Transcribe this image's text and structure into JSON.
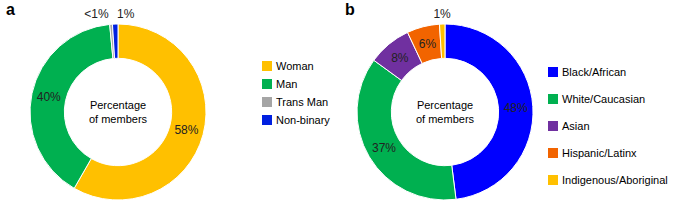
{
  "chart_data": [
    {
      "type": "donut",
      "title": "a",
      "annotations": [
        "Percentage of members"
      ],
      "categories": [
        "Woman",
        "Man",
        "Trans Man",
        "Non-binary"
      ],
      "values": [
        58,
        40,
        0.5,
        1
      ],
      "value_labels": [
        "58%",
        "40%",
        "<1%",
        "1%"
      ],
      "colors": [
        "#ffc000",
        "#00b050",
        "#a5a5a5",
        "#0020e0"
      ],
      "data_labels": true,
      "legend": "right"
    },
    {
      "type": "donut",
      "title": "b",
      "annotations": [
        "Percentage of members"
      ],
      "categories": [
        "Black/African",
        "White/Caucasian",
        "Asian",
        "Hispanic/Latinx",
        "Indigenous/Aboriginal"
      ],
      "values": [
        48,
        37,
        8,
        6,
        1
      ],
      "value_labels": [
        "48%",
        "37%",
        "8%",
        "6%",
        "1%"
      ],
      "colors": [
        "#0000ff",
        "#00b050",
        "#7030a0",
        "#f26400",
        "#ffc000"
      ],
      "data_labels": true,
      "legend": "right"
    }
  ]
}
